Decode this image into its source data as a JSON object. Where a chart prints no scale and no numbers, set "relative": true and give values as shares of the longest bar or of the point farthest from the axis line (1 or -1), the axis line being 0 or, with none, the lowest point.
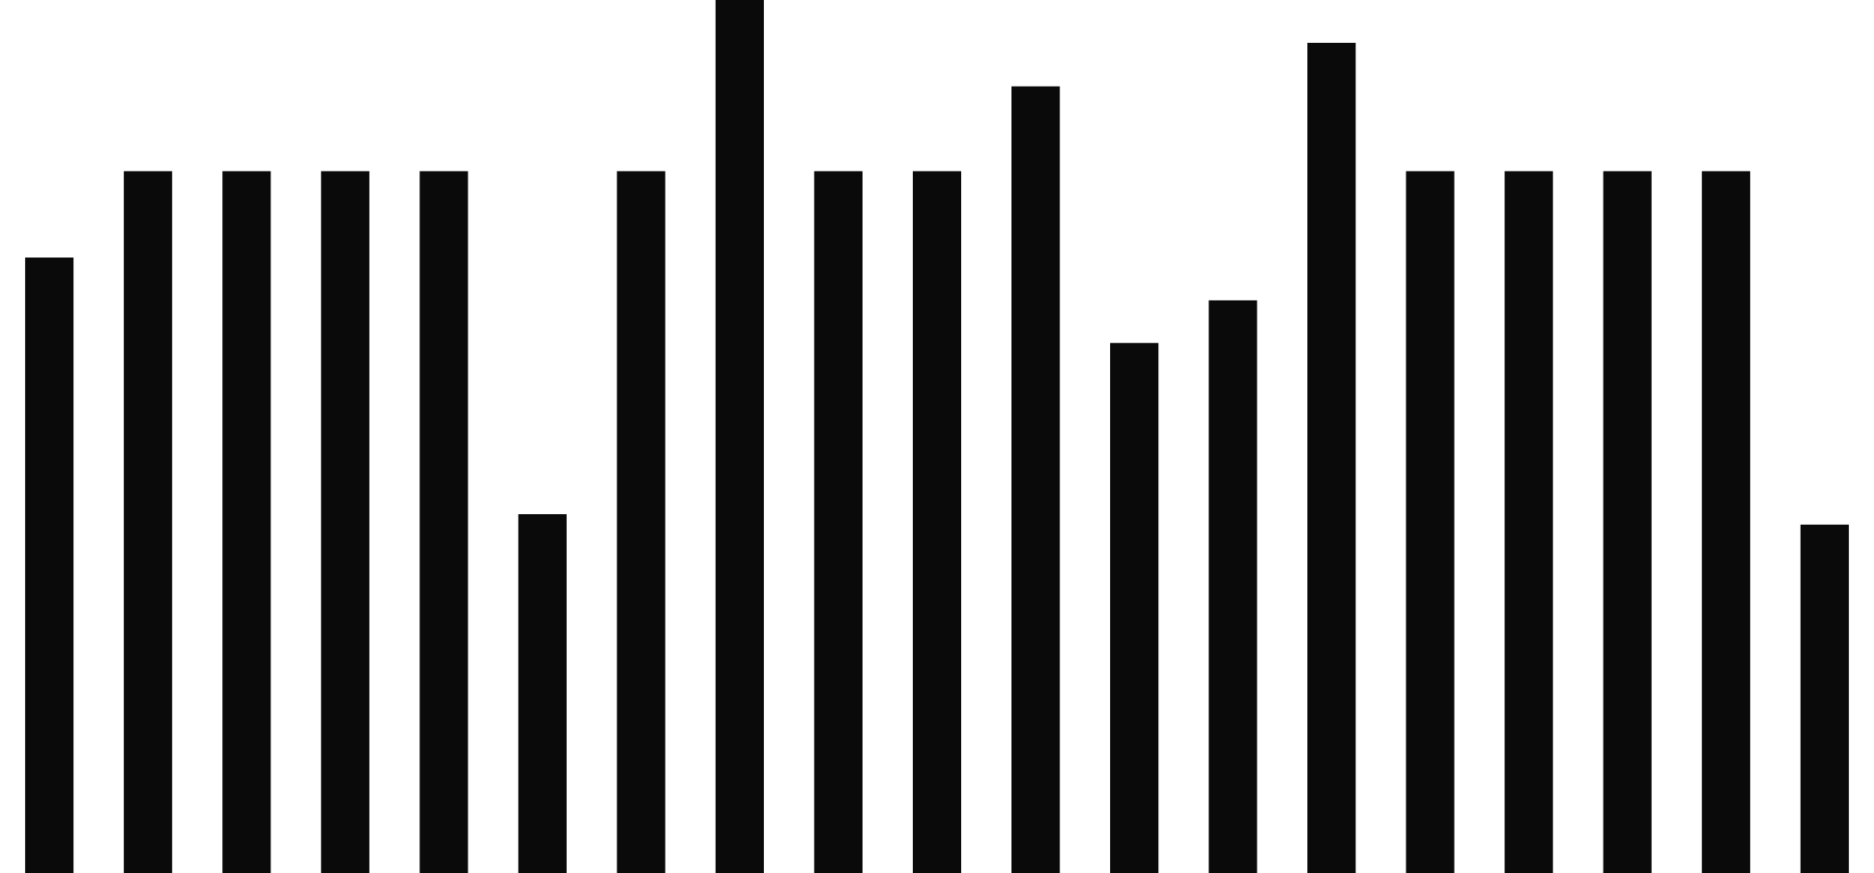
{
  "chart_data": {
    "type": "bar",
    "relative": true,
    "categories": [
      null,
      null,
      null,
      null,
      null,
      null,
      null,
      null,
      null,
      null,
      null,
      null,
      null,
      null,
      null,
      null,
      null,
      null,
      null
    ],
    "values": [
      0.705,
      0.804,
      0.804,
      0.804,
      0.804,
      0.411,
      0.804,
      1,
      0.804,
      0.804,
      0.901,
      0.607,
      0.656,
      0.951,
      0.804,
      0.804,
      0.804,
      0.804,
      0.399
    ],
    "color": "#0a0a0a",
    "grid": false,
    "legend": false
  }
}
